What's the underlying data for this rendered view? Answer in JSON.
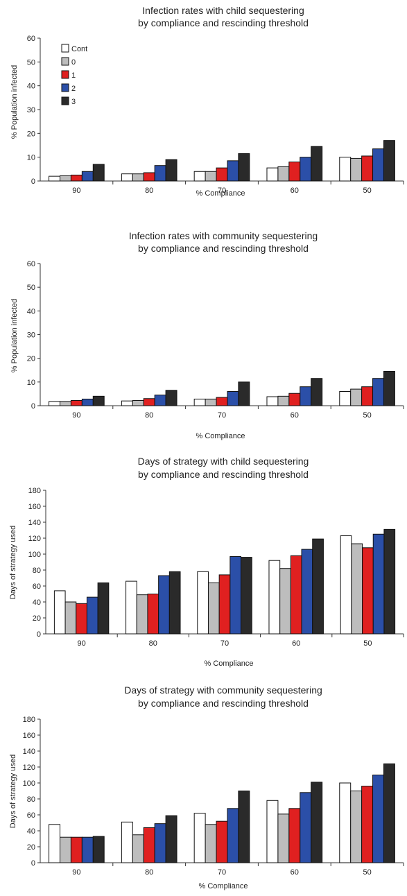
{
  "chart_data": [
    {
      "type": "bar",
      "title": "Infection rates with child sequestering",
      "subtitle": "by compliance and rescinding threshold",
      "xlabel": "% Compliance",
      "ylabel": "% Population infected",
      "ylim": [
        0,
        60
      ],
      "yticks": [
        0,
        10,
        20,
        30,
        40,
        50,
        60
      ],
      "categories": [
        "90",
        "80",
        "70",
        "60",
        "50"
      ],
      "legend": "top-left",
      "series": [
        {
          "name": "Cont",
          "color": "#ffffff",
          "values": [
            2,
            3,
            4,
            5.5,
            10
          ]
        },
        {
          "name": "0",
          "color": "#bdbdbd",
          "values": [
            2.2,
            3,
            4,
            6,
            9.5
          ]
        },
        {
          "name": "1",
          "color": "#e02020",
          "values": [
            2.5,
            3.5,
            5.5,
            8,
            10.5
          ]
        },
        {
          "name": "2",
          "color": "#2b4fa8",
          "values": [
            4,
            6.5,
            8.5,
            10,
            13.5
          ]
        },
        {
          "name": "3",
          "color": "#2a2a2a",
          "values": [
            7,
            9,
            11.5,
            14.5,
            17
          ]
        }
      ]
    },
    {
      "type": "bar",
      "title": "Infection rates with community sequestering",
      "subtitle": "by compliance and rescinding threshold",
      "xlabel": "% Compliance",
      "ylabel": "% Population infected",
      "ylim": [
        0,
        60
      ],
      "yticks": [
        0,
        10,
        20,
        30,
        40,
        50,
        60
      ],
      "categories": [
        "90",
        "80",
        "70",
        "60",
        "50"
      ],
      "series": [
        {
          "name": "Cont",
          "color": "#ffffff",
          "values": [
            1.8,
            2,
            2.8,
            3.8,
            6
          ]
        },
        {
          "name": "0",
          "color": "#bdbdbd",
          "values": [
            1.8,
            2.2,
            2.8,
            4,
            7
          ]
        },
        {
          "name": "1",
          "color": "#e02020",
          "values": [
            2.2,
            3,
            3.5,
            5.2,
            8
          ]
        },
        {
          "name": "2",
          "color": "#2b4fa8",
          "values": [
            2.8,
            4.5,
            6,
            8,
            11.5
          ]
        },
        {
          "name": "3",
          "color": "#2a2a2a",
          "values": [
            4,
            6.5,
            10,
            11.5,
            14.5
          ]
        }
      ]
    },
    {
      "type": "bar",
      "title": "Days of strategy with child sequestering",
      "subtitle": "by compliance and rescinding threshold",
      "xlabel": "% Compliance",
      "ylabel": "Days of strategy used",
      "ylim": [
        0,
        180
      ],
      "yticks": [
        0,
        20,
        40,
        60,
        80,
        100,
        120,
        140,
        160,
        180
      ],
      "categories": [
        "90",
        "80",
        "70",
        "60",
        "50"
      ],
      "series": [
        {
          "name": "Cont",
          "color": "#ffffff",
          "values": [
            54,
            66,
            78,
            92,
            123
          ]
        },
        {
          "name": "0",
          "color": "#bdbdbd",
          "values": [
            40,
            49,
            64,
            82,
            113
          ]
        },
        {
          "name": "1",
          "color": "#e02020",
          "values": [
            38,
            50,
            74,
            98,
            108
          ]
        },
        {
          "name": "2",
          "color": "#2b4fa8",
          "values": [
            46,
            73,
            97,
            106,
            125
          ]
        },
        {
          "name": "3",
          "color": "#2a2a2a",
          "values": [
            64,
            78,
            96,
            119,
            131
          ]
        }
      ]
    },
    {
      "type": "bar",
      "title": "Days of strategy with community sequestering",
      "subtitle": "by compliance and rescinding threshold",
      "xlabel": "% Compliance",
      "ylabel": "Days of strategy used",
      "ylim": [
        0,
        180
      ],
      "yticks": [
        0,
        20,
        40,
        60,
        80,
        100,
        120,
        140,
        160,
        180
      ],
      "categories": [
        "90",
        "80",
        "70",
        "60",
        "50"
      ],
      "series": [
        {
          "name": "Cont",
          "color": "#ffffff",
          "values": [
            48,
            51,
            62,
            78,
            100
          ]
        },
        {
          "name": "0",
          "color": "#bdbdbd",
          "values": [
            32,
            35,
            48,
            61,
            90
          ]
        },
        {
          "name": "1",
          "color": "#e02020",
          "values": [
            32,
            44,
            52,
            68,
            96
          ]
        },
        {
          "name": "2",
          "color": "#2b4fa8",
          "values": [
            32,
            49,
            68,
            88,
            110
          ]
        },
        {
          "name": "3",
          "color": "#2a2a2a",
          "values": [
            33,
            59,
            90,
            101,
            124
          ]
        }
      ]
    }
  ]
}
